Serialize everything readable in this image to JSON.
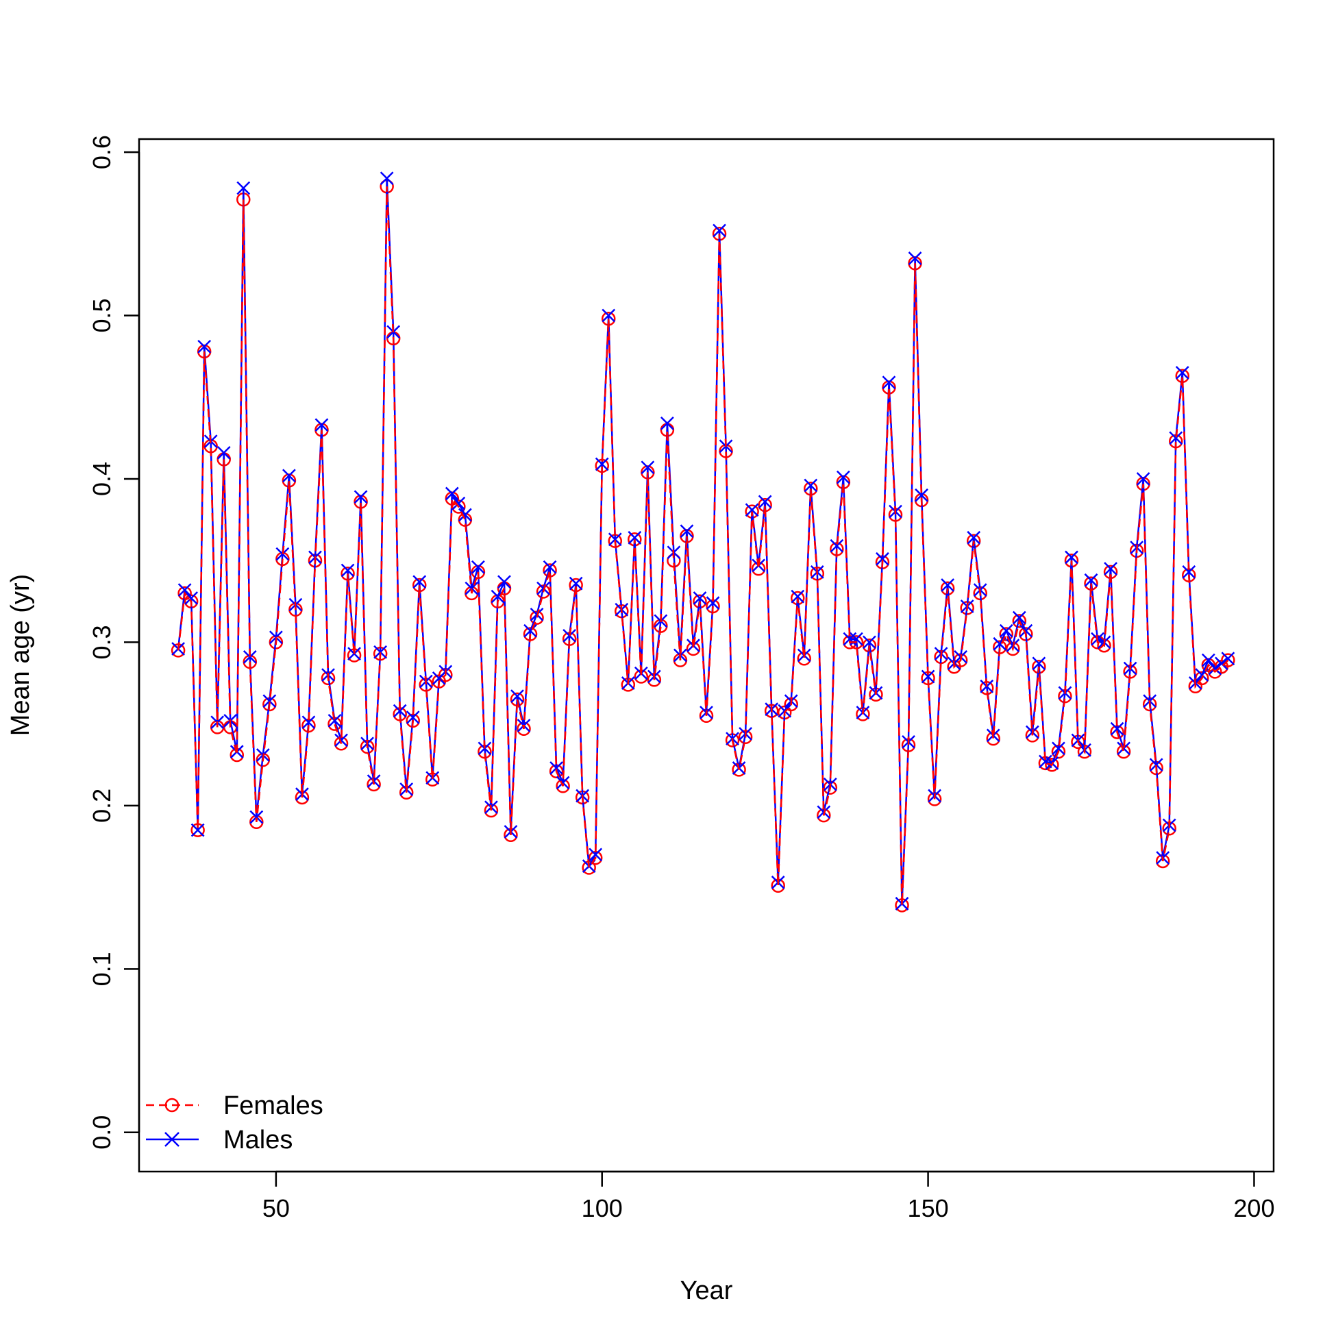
{
  "chart_data": {
    "type": "line",
    "title": "",
    "xlabel": "Year",
    "ylabel": "Mean age (yr)",
    "xlim": [
      29,
      203
    ],
    "ylim": [
      -0.024,
      0.608
    ],
    "x_ticks": [
      50,
      100,
      150,
      200
    ],
    "y_ticks": [
      0.0,
      0.1,
      0.2,
      0.3,
      0.4,
      0.5,
      0.6
    ],
    "x_tick_labels": [
      "50",
      "100",
      "150",
      "200"
    ],
    "y_tick_labels": [
      "0.0",
      "0.1",
      "0.2",
      "0.3",
      "0.4",
      "0.5",
      "0.6"
    ],
    "grid": false,
    "legend_position": "bottom-left",
    "x_start": 35,
    "series": [
      {
        "name": "Females",
        "color": "#ff0000",
        "line_style": "dashed",
        "marker": "circle",
        "values": [
          0.295,
          0.33,
          0.325,
          0.185,
          0.478,
          0.42,
          0.248,
          0.412,
          0.248,
          0.231,
          0.571,
          0.288,
          0.19,
          0.228,
          0.262,
          0.3,
          0.351,
          0.399,
          0.32,
          0.205,
          0.249,
          0.35,
          0.43,
          0.278,
          0.25,
          0.238,
          0.342,
          0.292,
          0.386,
          0.236,
          0.213,
          0.293,
          0.579,
          0.486,
          0.256,
          0.208,
          0.252,
          0.335,
          0.274,
          0.216,
          0.276,
          0.28,
          0.388,
          0.383,
          0.375,
          0.33,
          0.343,
          0.233,
          0.197,
          0.325,
          0.333,
          0.182,
          0.265,
          0.247,
          0.305,
          0.315,
          0.331,
          0.344,
          0.221,
          0.212,
          0.302,
          0.335,
          0.205,
          0.162,
          0.168,
          0.408,
          0.498,
          0.362,
          0.319,
          0.274,
          0.363,
          0.279,
          0.404,
          0.277,
          0.31,
          0.43,
          0.35,
          0.289,
          0.365,
          0.296,
          0.325,
          0.255,
          0.322,
          0.55,
          0.417,
          0.24,
          0.222,
          0.242,
          0.38,
          0.345,
          0.384,
          0.258,
          0.151,
          0.257,
          0.262,
          0.327,
          0.29,
          0.394,
          0.342,
          0.194,
          0.211,
          0.357,
          0.398,
          0.3,
          0.3,
          0.256,
          0.298,
          0.268,
          0.349,
          0.456,
          0.378,
          0.139,
          0.237,
          0.532,
          0.387,
          0.278,
          0.204,
          0.291,
          0.333,
          0.285,
          0.289,
          0.321,
          0.362,
          0.33,
          0.272,
          0.241,
          0.297,
          0.305,
          0.296,
          0.313,
          0.305,
          0.243,
          0.285,
          0.226,
          0.225,
          0.233,
          0.267,
          0.35,
          0.239,
          0.233,
          0.336,
          0.3,
          0.298,
          0.343,
          0.245,
          0.233,
          0.282,
          0.356,
          0.397,
          0.262,
          0.223,
          0.166,
          0.186,
          0.423,
          0.463,
          0.341,
          0.273,
          0.278,
          0.286,
          0.282,
          0.285,
          0.289
        ]
      },
      {
        "name": "Males",
        "color": "#0000ff",
        "line_style": "solid",
        "marker": "cross",
        "values": [
          0.296,
          0.332,
          0.327,
          0.185,
          0.481,
          0.423,
          0.251,
          0.416,
          0.252,
          0.233,
          0.578,
          0.291,
          0.193,
          0.231,
          0.264,
          0.303,
          0.354,
          0.402,
          0.323,
          0.207,
          0.251,
          0.352,
          0.433,
          0.28,
          0.252,
          0.24,
          0.344,
          0.293,
          0.389,
          0.238,
          0.215,
          0.294,
          0.584,
          0.49,
          0.258,
          0.21,
          0.254,
          0.337,
          0.276,
          0.217,
          0.278,
          0.282,
          0.391,
          0.385,
          0.378,
          0.333,
          0.346,
          0.235,
          0.199,
          0.328,
          0.337,
          0.184,
          0.267,
          0.249,
          0.307,
          0.317,
          0.333,
          0.346,
          0.223,
          0.214,
          0.304,
          0.336,
          0.206,
          0.163,
          0.17,
          0.409,
          0.5,
          0.363,
          0.32,
          0.275,
          0.364,
          0.281,
          0.407,
          0.279,
          0.313,
          0.434,
          0.355,
          0.292,
          0.368,
          0.298,
          0.327,
          0.257,
          0.324,
          0.552,
          0.42,
          0.241,
          0.223,
          0.244,
          0.381,
          0.347,
          0.386,
          0.259,
          0.153,
          0.258,
          0.264,
          0.328,
          0.292,
          0.396,
          0.343,
          0.196,
          0.213,
          0.359,
          0.401,
          0.302,
          0.302,
          0.257,
          0.3,
          0.269,
          0.351,
          0.459,
          0.38,
          0.14,
          0.239,
          0.535,
          0.39,
          0.279,
          0.206,
          0.293,
          0.335,
          0.287,
          0.291,
          0.322,
          0.364,
          0.332,
          0.273,
          0.243,
          0.299,
          0.307,
          0.298,
          0.315,
          0.307,
          0.245,
          0.287,
          0.227,
          0.226,
          0.235,
          0.269,
          0.352,
          0.24,
          0.234,
          0.338,
          0.302,
          0.3,
          0.345,
          0.247,
          0.235,
          0.284,
          0.358,
          0.4,
          0.264,
          0.225,
          0.168,
          0.188,
          0.425,
          0.465,
          0.343,
          0.275,
          0.28,
          0.289,
          0.284,
          0.287,
          0.29
        ]
      }
    ]
  }
}
